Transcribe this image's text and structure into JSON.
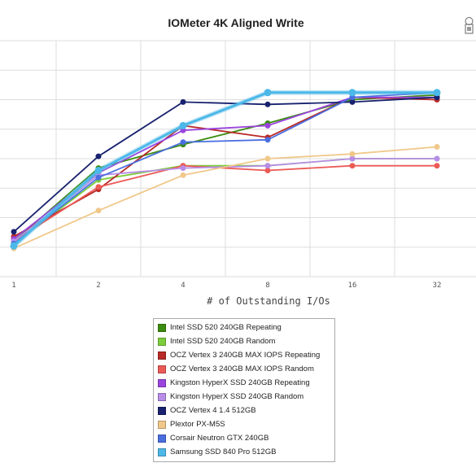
{
  "chart_data": {
    "type": "line",
    "title": "IOMeter 4K Aligned Write",
    "xlabel": "# of Outstanding I/Os",
    "ylabel": "",
    "categories": [
      "1",
      "2",
      "4",
      "8",
      "16",
      "32"
    ],
    "ylim": [
      0,
      100
    ],
    "grid": true,
    "legend_placement": "bottom",
    "series": [
      {
        "name": "Intel SSD 520 240GB Repeating",
        "color": "#3a8c0e",
        "values": [
          15,
          46,
          56,
          65,
          75,
          77
        ]
      },
      {
        "name": "Intel SSD 520 240GB Random",
        "color": "#7ccd3c",
        "values": [
          14,
          41,
          47,
          47,
          50,
          50
        ]
      },
      {
        "name": "OCZ Vertex 3 240GB MAX IOPS Repeating",
        "color": "#b82a26",
        "values": [
          17,
          37,
          64,
          59,
          76,
          75
        ]
      },
      {
        "name": "OCZ Vertex 3 240GB MAX IOPS Random",
        "color": "#ec5a55",
        "values": [
          15,
          38,
          47,
          45,
          47,
          47
        ]
      },
      {
        "name": "Kingston HyperX SSD 240GB Repeating",
        "color": "#9a44de",
        "values": [
          16,
          44,
          62,
          64,
          76,
          76
        ]
      },
      {
        "name": "Kingston HyperX SSD 240GB Random",
        "color": "#b88de8",
        "values": [
          15,
          43,
          46,
          47,
          50,
          50
        ]
      },
      {
        "name": "OCZ Vertex 4 1.4 512GB",
        "color": "#18226e",
        "values": [
          19,
          51,
          74,
          73,
          74,
          76
        ]
      },
      {
        "name": "Plextor PX-M5S",
        "color": "#f0c88a",
        "values": [
          12,
          28,
          43,
          50,
          52,
          55
        ]
      },
      {
        "name": "Corsair Neutron GTX 240GB",
        "color": "#4a6ee0",
        "values": [
          14,
          42,
          57,
          58,
          76,
          78
        ]
      },
      {
        "name": "Samsung SSD 840 Pro 512GB",
        "color": "#4cb8e8",
        "values": [
          13,
          45,
          64,
          78,
          78,
          78
        ]
      }
    ]
  }
}
